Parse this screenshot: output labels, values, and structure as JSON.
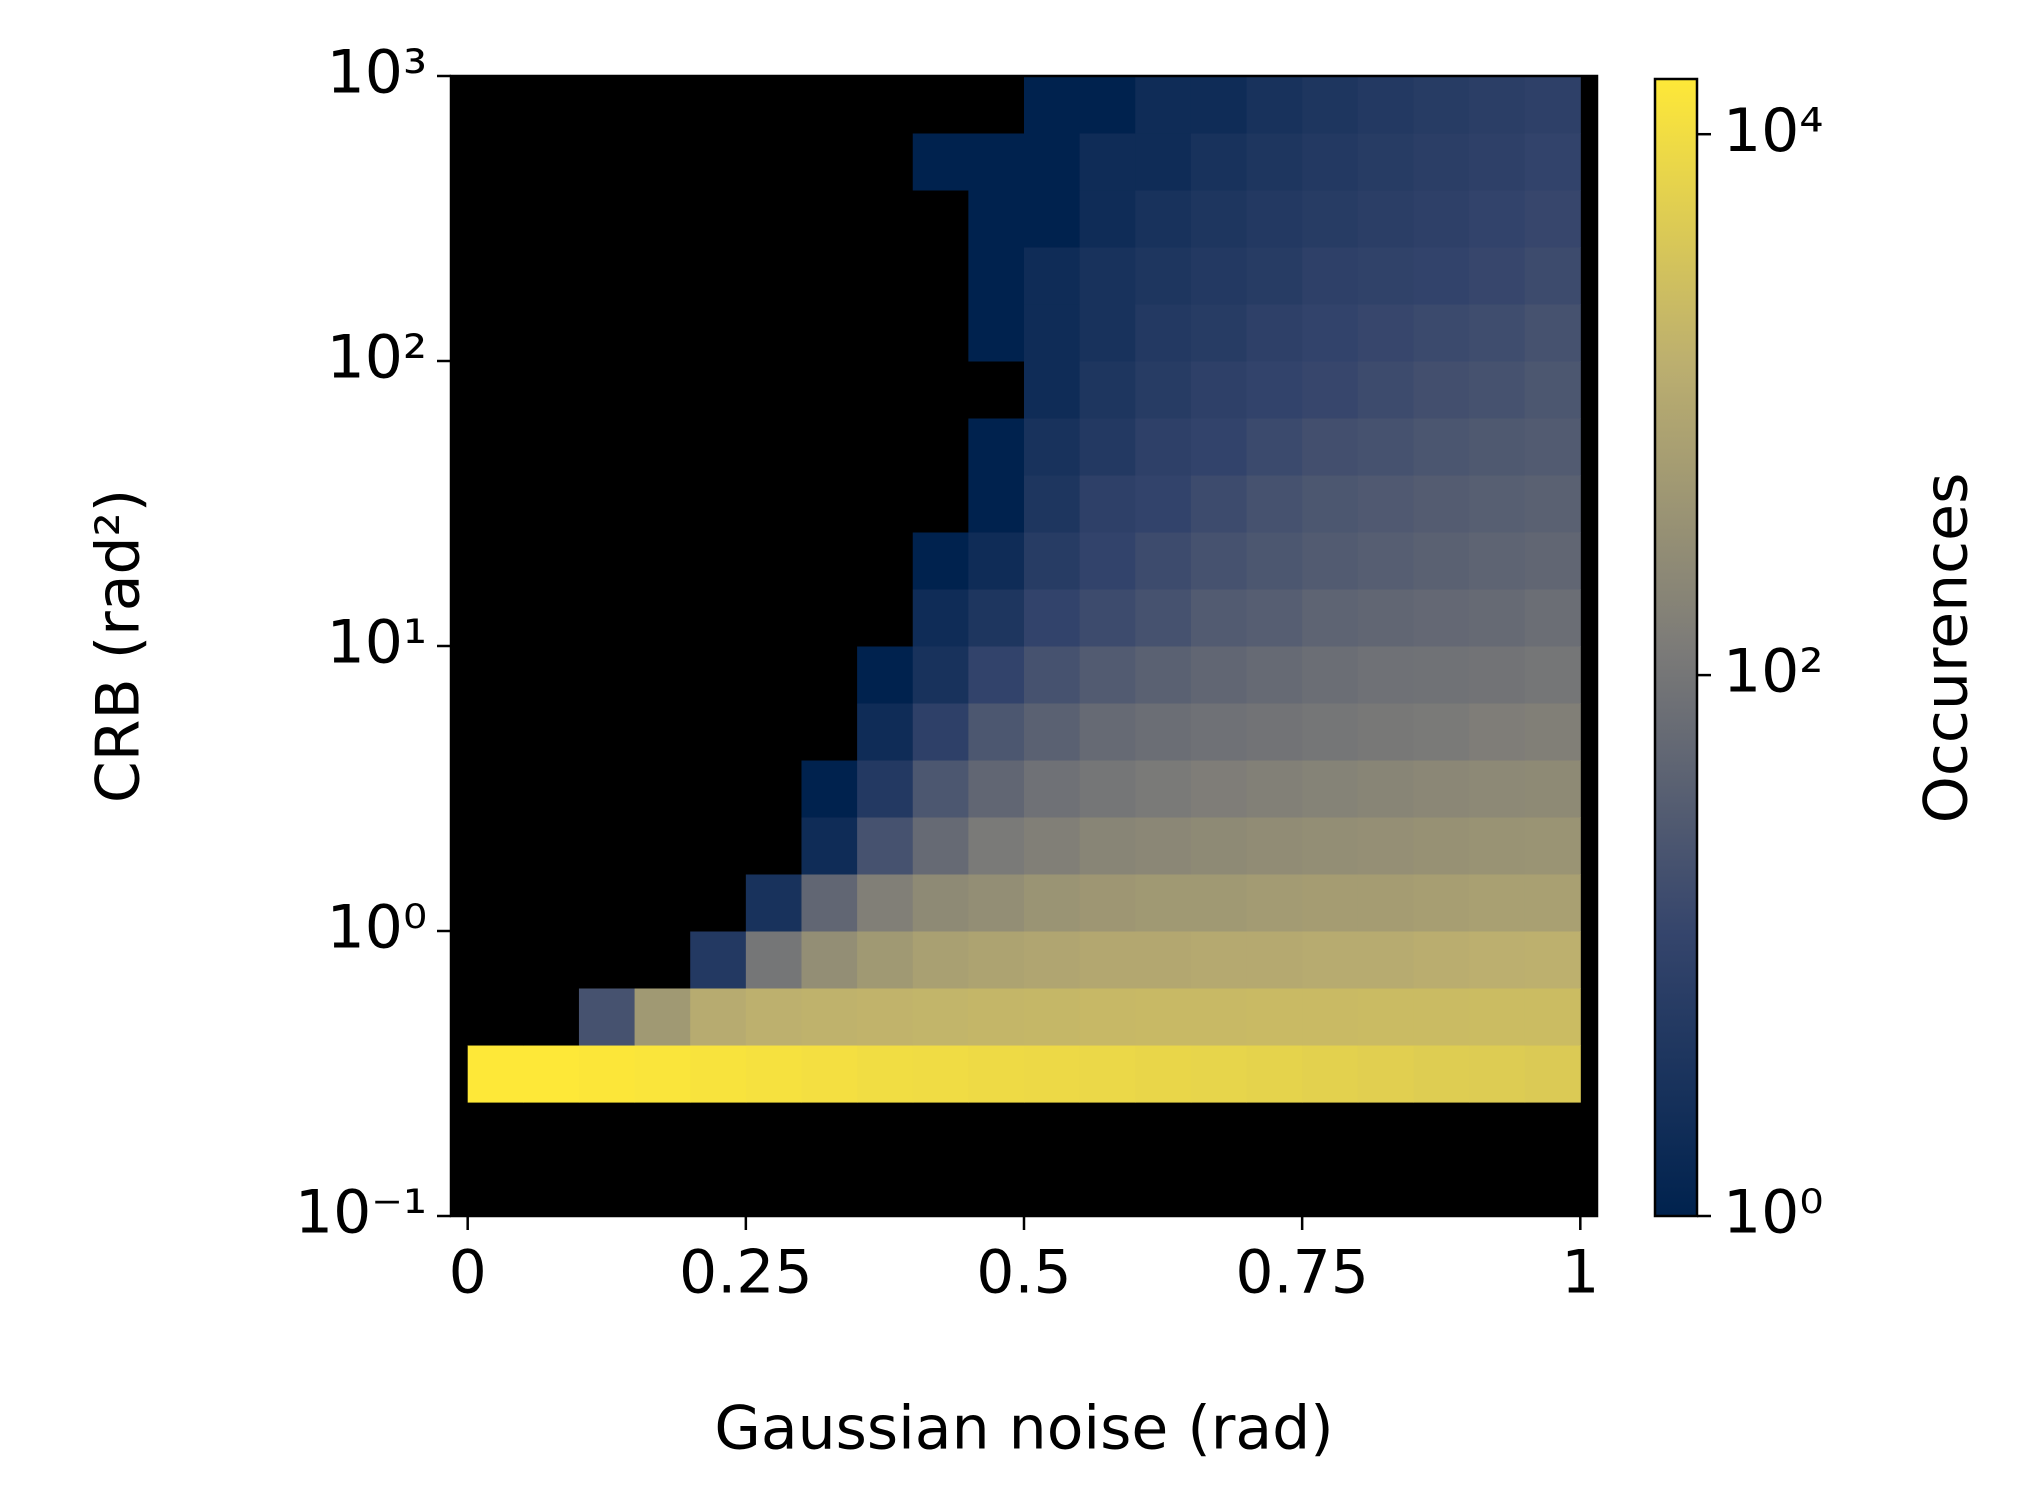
{
  "chart_data": {
    "type": "hist2d",
    "xlabel": "Gaussian noise (rad)",
    "ylabel": "CRB (rad²)",
    "colorbar_label": "Occurences",
    "x_bins": [
      0,
      0.05,
      0.1,
      0.15,
      0.2,
      0.25,
      0.3,
      0.35,
      0.4,
      0.45,
      0.5,
      0.55,
      0.6,
      0.65,
      0.7,
      0.75,
      0.8,
      0.85,
      0.9,
      0.95,
      1
    ],
    "y_bins": [
      0.1,
      0.158,
      0.251,
      0.398,
      0.631,
      1,
      1.585,
      2.512,
      3.981,
      6.31,
      10,
      15.85,
      25.12,
      39.81,
      63.1,
      100,
      158.5,
      251.2,
      398.1,
      631,
      1000
    ],
    "counts": [
      [
        0,
        0,
        0,
        0,
        0,
        0,
        0,
        0,
        0,
        0,
        0,
        0,
        0,
        0,
        0,
        0,
        0,
        0,
        0,
        0
      ],
      [
        0,
        0,
        0,
        0,
        0,
        0,
        0,
        0,
        0,
        0,
        0,
        0,
        0,
        0,
        0,
        0,
        0,
        0,
        0,
        0
      ],
      [
        16000,
        16000,
        15000,
        14000,
        13000,
        12000,
        11000,
        10000,
        9500,
        9000,
        8500,
        8000,
        7500,
        7000,
        6500,
        6000,
        5500,
        5000,
        4800,
        4500
      ],
      [
        0,
        0,
        20,
        500,
        1200,
        1500,
        1600,
        1700,
        1800,
        1900,
        2000,
        2100,
        2200,
        2200,
        2300,
        2300,
        2400,
        2400,
        2500,
        2500
      ],
      [
        0,
        0,
        0,
        0,
        5,
        100,
        300,
        500,
        700,
        800,
        900,
        1000,
        1000,
        1100,
        1100,
        1200,
        1200,
        1300,
        1400,
        1500
      ],
      [
        0,
        0,
        0,
        0,
        0,
        3,
        50,
        150,
        250,
        300,
        400,
        450,
        500,
        500,
        550,
        600,
        600,
        650,
        700,
        700
      ],
      [
        0,
        0,
        0,
        0,
        0,
        0,
        2,
        20,
        60,
        120,
        150,
        200,
        220,
        250,
        280,
        300,
        320,
        350,
        380,
        400
      ],
      [
        0,
        0,
        0,
        0,
        0,
        0,
        1,
        5,
        25,
        50,
        80,
        100,
        120,
        140,
        160,
        180,
        200,
        220,
        240,
        250
      ],
      [
        0,
        0,
        0,
        0,
        0,
        0,
        0,
        2,
        8,
        25,
        40,
        60,
        70,
        80,
        90,
        100,
        110,
        120,
        140,
        150
      ],
      [
        0,
        0,
        0,
        0,
        0,
        0,
        0,
        1,
        3,
        10,
        20,
        30,
        40,
        50,
        60,
        70,
        80,
        85,
        90,
        100
      ],
      [
        0,
        0,
        0,
        0,
        0,
        0,
        0,
        0,
        2,
        4,
        10,
        15,
        20,
        30,
        35,
        45,
        50,
        55,
        60,
        70
      ],
      [
        0,
        0,
        0,
        0,
        0,
        0,
        0,
        0,
        1,
        2,
        6,
        10,
        15,
        20,
        25,
        30,
        35,
        40,
        45,
        50
      ],
      [
        0,
        0,
        0,
        0,
        0,
        0,
        0,
        0,
        0,
        1,
        4,
        8,
        10,
        15,
        20,
        25,
        28,
        32,
        36,
        40
      ],
      [
        0,
        0,
        0,
        0,
        0,
        0,
        0,
        0,
        0,
        1,
        3,
        5,
        8,
        10,
        14,
        18,
        20,
        24,
        27,
        30
      ],
      [
        0,
        0,
        0,
        0,
        0,
        0,
        0,
        0,
        0,
        0,
        2,
        4,
        6,
        8,
        10,
        12,
        15,
        18,
        20,
        25
      ],
      [
        0,
        0,
        0,
        0,
        0,
        0,
        0,
        0,
        0,
        1,
        2,
        3,
        5,
        6,
        8,
        10,
        12,
        14,
        16,
        20
      ],
      [
        0,
        0,
        0,
        0,
        0,
        0,
        0,
        0,
        0,
        1,
        2,
        3,
        4,
        5,
        6,
        8,
        9,
        10,
        12,
        15
      ],
      [
        0,
        0,
        0,
        0,
        0,
        0,
        0,
        0,
        0,
        1,
        1,
        2,
        3,
        4,
        5,
        6,
        7,
        8,
        10,
        12
      ],
      [
        0,
        0,
        0,
        0,
        0,
        0,
        0,
        0,
        1,
        1,
        1,
        2,
        2,
        3,
        4,
        5,
        6,
        7,
        8,
        10
      ],
      [
        0,
        0,
        0,
        0,
        0,
        0,
        0,
        0,
        0,
        0,
        1,
        1,
        2,
        2,
        3,
        4,
        5,
        6,
        7,
        8
      ]
    ],
    "xlim": [
      -0.015,
      1.015
    ],
    "xticks": [
      0,
      0.25,
      0.5,
      0.75,
      1
    ],
    "ylim": [
      0.1,
      1000
    ],
    "y_log": true,
    "yticks": [
      {
        "value": 0.1,
        "label": "10⁻¹"
      },
      {
        "value": 1,
        "label": "10⁰"
      },
      {
        "value": 10,
        "label": "10¹"
      },
      {
        "value": 100,
        "label": "10²"
      },
      {
        "value": 1000,
        "label": "10³"
      }
    ],
    "clim": [
      1,
      16000
    ],
    "color_log": true,
    "cticks": [
      {
        "value": 1,
        "label": "10⁰"
      },
      {
        "value": 100,
        "label": "10²"
      },
      {
        "value": 10000,
        "label": "10⁴"
      }
    ],
    "colormap": [
      "#00224e",
      "#35456c",
      "#7c7b78",
      "#bcaf6f",
      "#fee838"
    ],
    "background": "#000000"
  }
}
